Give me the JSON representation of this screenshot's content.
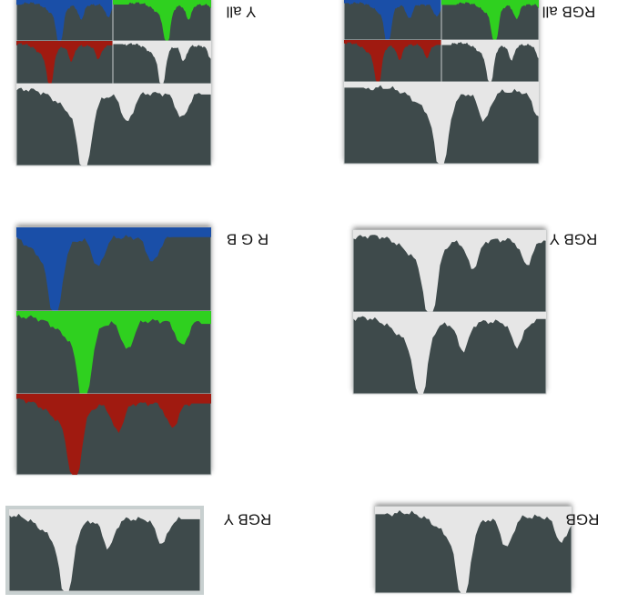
{
  "panels": [
    {
      "label": "Y all"
    },
    {
      "label": "RGB all"
    },
    {
      "label": "R G B"
    },
    {
      "label": "RGB Y"
    },
    {
      "label": "RGB Y"
    },
    {
      "label": "RGB"
    }
  ]
}
